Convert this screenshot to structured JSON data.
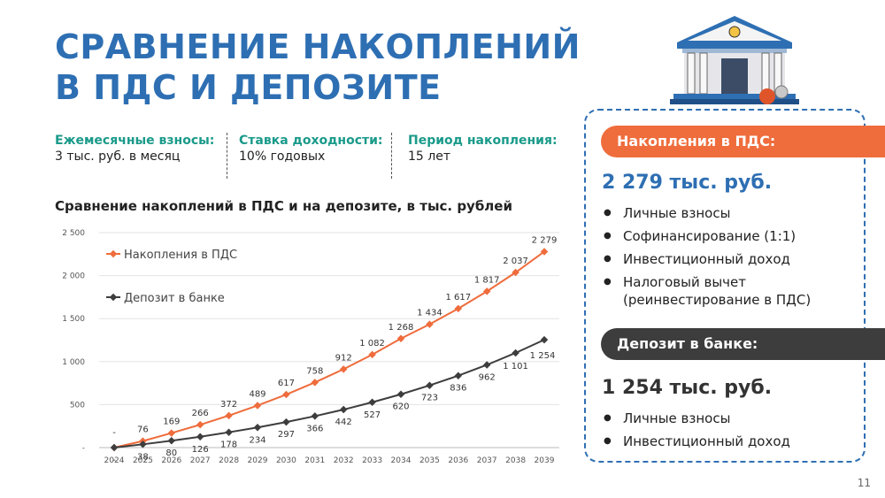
{
  "title_line1": "СРАВНЕНИЕ НАКОПЛЕНИЙ",
  "title_line2": "В ПДС И ДЕПОЗИТЕ",
  "params": [
    {
      "label": "Ежемесячные взносы:",
      "value": "3 тыс. руб. в месяц"
    },
    {
      "label": "Ставка доходности:",
      "value": "10% годовых"
    },
    {
      "label": "Период накопления:",
      "value": "15 лет"
    }
  ],
  "colors": {
    "pds": "#ef6c3c",
    "deposit": "#3d3d3d",
    "accent": "#2e6fb3",
    "teal": "#1a9a8a"
  },
  "chart_data": {
    "type": "line",
    "title": "Сравнение накоплений в ПДС и на депозите, в тыс. рублей",
    "x": [
      "2024",
      "2025",
      "2026",
      "2027",
      "2028",
      "2029",
      "2030",
      "2031",
      "2032",
      "2033",
      "2034",
      "2035",
      "2036",
      "2037",
      "2038",
      "2039"
    ],
    "ylim": [
      0,
      2500
    ],
    "yticks": [
      0,
      500,
      1000,
      1500,
      2000,
      2500
    ],
    "ytick_labels": [
      "-",
      "500",
      "1 000",
      "1 500",
      "2 000",
      "2 500"
    ],
    "grid": true,
    "legend": "top-left",
    "series": [
      {
        "name": "Накопления в ПДС",
        "color": "#ef6c3c",
        "values": [
          0,
          76,
          169,
          266,
          372,
          489,
          617,
          758,
          912,
          1082,
          1268,
          1434,
          1617,
          1817,
          2037,
          2279
        ],
        "labels": [
          "-",
          "76",
          "169",
          "266",
          "372",
          "489",
          "617",
          "758",
          "912",
          "1 082",
          "1 268",
          "1 434",
          "1 617",
          "1 817",
          "2 037",
          "2 279"
        ]
      },
      {
        "name": "Депозит в банке",
        "color": "#3d3d3d",
        "values": [
          0,
          38,
          80,
          126,
          178,
          234,
          297,
          366,
          442,
          527,
          620,
          723,
          836,
          962,
          1101,
          1254
        ],
        "labels": [
          "-",
          "38",
          "80",
          "126",
          "178",
          "234",
          "297",
          "366",
          "442",
          "527",
          "620",
          "723",
          "836",
          "962",
          "1 101",
          "1 254"
        ]
      }
    ]
  },
  "panel": {
    "pds_header": "Накопления в ПДС:",
    "pds_amount": "2 279 тыс. руб.",
    "pds_items": [
      "Личные взносы",
      "Софинансирование (1:1)",
      "Инвестиционный доход",
      "Налоговый вычет (реинвестирование в ПДС)"
    ],
    "dep_header": "Депозит в банке:",
    "dep_amount": "1 254 тыс. руб.",
    "dep_items": [
      "Личные взносы",
      "Инвестиционный доход"
    ]
  },
  "page_number": "11",
  "icons": {
    "bank": "bank-building-icon"
  }
}
